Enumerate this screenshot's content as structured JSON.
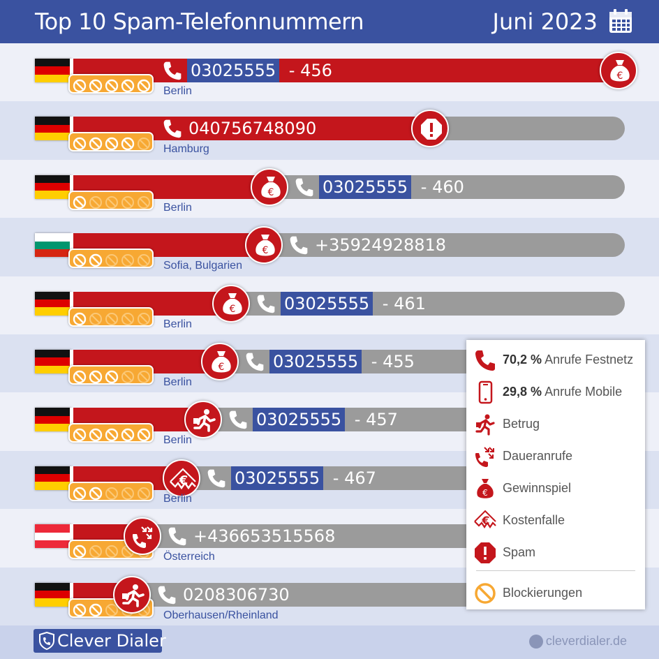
{
  "header": {
    "title": "Top 10 Spam-Telefonnummern",
    "date": "Juni 2023",
    "calendar_icon": "calendar-icon"
  },
  "colors": {
    "header_blue": "#3a52a0",
    "bar_red": "#c4161c",
    "bar_grey": "#9b9b9b",
    "block_orange": "#f7a833",
    "row_alt": "#dbe1f1",
    "row_plain": "#eef0f8"
  },
  "chart_data": {
    "type": "bar",
    "title": "Top 10 Spam-Telefonnummern",
    "rows": [
      {
        "rank": 1,
        "number_highlight": "03025555",
        "number_rest": " - 456",
        "number": "03025555 - 456",
        "city": "Berlin",
        "flag": "DE",
        "category": "Gewinnspiel",
        "line_type": "Festnetz",
        "spam_share": 1.0,
        "blockierungen": 5
      },
      {
        "rank": 2,
        "number_highlight": "",
        "number_rest": "040756748090",
        "number": "040756748090",
        "city": "Hamburg",
        "flag": "DE",
        "category": "Spam",
        "line_type": "Festnetz",
        "spam_share": 0.66,
        "blockierungen": 4
      },
      {
        "rank": 3,
        "number_highlight": "03025555",
        "number_rest": " - 460",
        "number": "03025555 - 460",
        "city": "Berlin",
        "flag": "DE",
        "category": "Gewinnspiel",
        "line_type": "Festnetz",
        "spam_share": 0.37,
        "blockierungen": 1
      },
      {
        "rank": 4,
        "number_highlight": "",
        "number_rest": "+35924928818",
        "number": "+35924928818",
        "city": "Sofia, Bulgarien",
        "flag": "BG",
        "category": "Gewinnspiel",
        "line_type": "Festnetz",
        "spam_share": 0.36,
        "blockierungen": 2
      },
      {
        "rank": 5,
        "number_highlight": "03025555",
        "number_rest": " - 461",
        "number": "03025555 - 461",
        "city": "Berlin",
        "flag": "DE",
        "category": "Gewinnspiel",
        "line_type": "Festnetz",
        "spam_share": 0.3,
        "blockierungen": 1
      },
      {
        "rank": 6,
        "number_highlight": "03025555",
        "number_rest": " - 455",
        "number": "03025555 - 455",
        "city": "Berlin",
        "flag": "DE",
        "category": "Gewinnspiel",
        "line_type": "Festnetz",
        "spam_share": 0.28,
        "blockierungen": 3
      },
      {
        "rank": 7,
        "number_highlight": "03025555",
        "number_rest": " - 457",
        "number": "03025555 - 457",
        "city": "Berlin",
        "flag": "DE",
        "category": "Betrug",
        "line_type": "Festnetz",
        "spam_share": 0.25,
        "blockierungen": 5
      },
      {
        "rank": 8,
        "number_highlight": "03025555",
        "number_rest": " - 467",
        "number": "03025555 - 467",
        "city": "Berlin",
        "flag": "DE",
        "category": "Kostenfalle",
        "line_type": "Festnetz",
        "spam_share": 0.21,
        "blockierungen": 2
      },
      {
        "rank": 9,
        "number_highlight": "",
        "number_rest": "+436653515568",
        "number": "+436653515568",
        "city": "Österreich",
        "flag": "AT",
        "category": "Daueranrufe",
        "line_type": "Festnetz",
        "spam_share": 0.14,
        "blockierungen": 1
      },
      {
        "rank": 10,
        "number_highlight": "",
        "number_rest": "0208306730",
        "number": "0208306730",
        "city": "Oberhausen/Rheinland",
        "flag": "DE",
        "category": "Betrug",
        "line_type": "Festnetz",
        "spam_share": 0.12,
        "blockierungen": 2
      }
    ]
  },
  "legend": {
    "festnetz": {
      "value": "70,2 %",
      "label": "Anrufe Festnetz",
      "icon": "phone-icon"
    },
    "mobile": {
      "value": "29,8 %",
      "label": "Anrufe Mobile",
      "icon": "mobile-phone-icon"
    },
    "betrug": {
      "label": "Betrug",
      "icon": "running-man-icon"
    },
    "daueranrufe": {
      "label": "Daueranrufe",
      "icon": "repeat-call-icon"
    },
    "gewinnspiel": {
      "label": "Gewinnspiel",
      "icon": "money-bag-icon"
    },
    "kostenfalle": {
      "label": "Kostenfalle",
      "icon": "cost-trap-icon"
    },
    "spam": {
      "label": "Spam",
      "icon": "warning-octagon-icon"
    },
    "blockierungen": {
      "label": "Blockierungen",
      "icon": "block-icon"
    }
  },
  "footer": {
    "brand": "Clever Dialer",
    "brand_icon": "shield-phone-icon",
    "site": "cleverdialer.de",
    "site_icon": "globe-icon"
  }
}
